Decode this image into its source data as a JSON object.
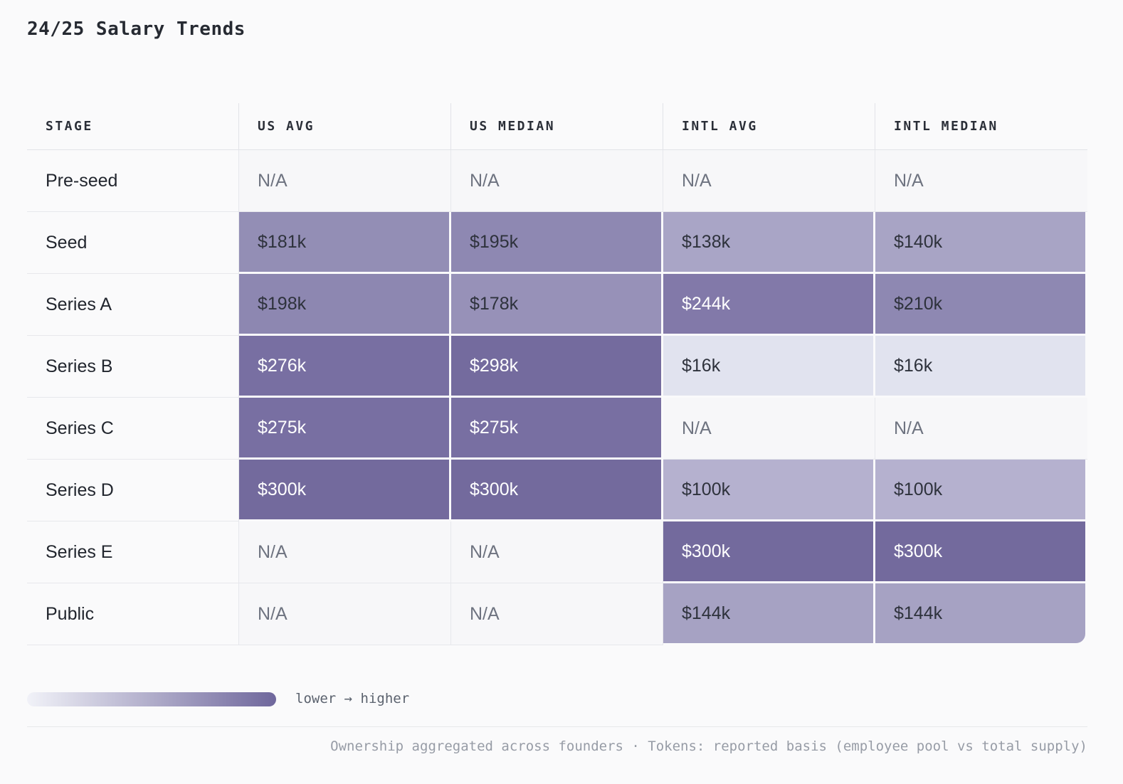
{
  "title": "24/25 Salary Trends",
  "table": {
    "columns": [
      "STAGE",
      "US AVG",
      "US MEDIAN",
      "INTL AVG",
      "INTL MEDIAN"
    ],
    "rows": [
      {
        "stage": "Pre-seed",
        "cells": [
          {
            "text": "N/A"
          },
          {
            "text": "N/A"
          },
          {
            "text": "N/A"
          },
          {
            "text": "N/A"
          }
        ]
      },
      {
        "stage": "Seed",
        "cells": [
          {
            "text": "$181k",
            "bg": "#938eb5"
          },
          {
            "text": "$195k",
            "bg": "#8e88b2"
          },
          {
            "text": "$138k",
            "bg": "#a9a5c6"
          },
          {
            "text": "$140k",
            "bg": "#a8a4c5"
          }
        ]
      },
      {
        "stage": "Series A",
        "cells": [
          {
            "text": "$198k",
            "bg": "#8d87b1"
          },
          {
            "text": "$178k",
            "bg": "#9791b8"
          },
          {
            "text": "$244k",
            "bg": "#8279a9",
            "fg": "light"
          },
          {
            "text": "$210k",
            "bg": "#8e88b2"
          }
        ]
      },
      {
        "stage": "Series B",
        "cells": [
          {
            "text": "$276k",
            "bg": "#786fa2",
            "fg": "light"
          },
          {
            "text": "$298k",
            "bg": "#746b9e",
            "fg": "light"
          },
          {
            "text": "$16k",
            "bg": "#e1e3ef"
          },
          {
            "text": "$16k",
            "bg": "#e1e3ef"
          }
        ]
      },
      {
        "stage": "Series C",
        "cells": [
          {
            "text": "$275k",
            "bg": "#786fa2",
            "fg": "light"
          },
          {
            "text": "$275k",
            "bg": "#786fa2",
            "fg": "light"
          },
          {
            "text": "N/A"
          },
          {
            "text": "N/A"
          }
        ]
      },
      {
        "stage": "Series D",
        "cells": [
          {
            "text": "$300k",
            "bg": "#736a9d",
            "fg": "light"
          },
          {
            "text": "$300k",
            "bg": "#736a9d",
            "fg": "light"
          },
          {
            "text": "$100k",
            "bg": "#b5b1cf"
          },
          {
            "text": "$100k",
            "bg": "#b5b1cf"
          }
        ]
      },
      {
        "stage": "Series E",
        "cells": [
          {
            "text": "N/A"
          },
          {
            "text": "N/A"
          },
          {
            "text": "$300k",
            "bg": "#736a9d",
            "fg": "light"
          },
          {
            "text": "$300k",
            "bg": "#736a9d",
            "fg": "light"
          }
        ]
      },
      {
        "stage": "Public",
        "cells": [
          {
            "text": "N/A"
          },
          {
            "text": "N/A"
          },
          {
            "text": "$144k",
            "bg": "#a6a2c3"
          },
          {
            "text": "$144k",
            "bg": "#a6a2c3",
            "corner": "br"
          }
        ]
      }
    ]
  },
  "legend": {
    "label": "lower → higher",
    "gradient_from": "#f1f2f8",
    "gradient_to": "#6f679c"
  },
  "footnote": "Ownership aggregated across founders · Tokens: reported basis (employee pool vs total supply)",
  "colors": {
    "page_bg": "#fafafb",
    "heat_min": "#e1e3ef",
    "heat_max": "#736a9d",
    "na_cell_bg": "#f7f7f9",
    "dark_text": "#2e323c",
    "light_text": "#ffffff"
  },
  "chart_data": {
    "type": "heatmap",
    "title": "24/25 Salary Trends",
    "rows": [
      "Pre-seed",
      "Seed",
      "Series A",
      "Series B",
      "Series C",
      "Series D",
      "Series E",
      "Public"
    ],
    "columns": [
      "US AVG",
      "US MEDIAN",
      "INTL AVG",
      "INTL MEDIAN"
    ],
    "values_usd_thousands": [
      [
        null,
        null,
        null,
        null
      ],
      [
        181,
        195,
        138,
        140
      ],
      [
        198,
        178,
        244,
        210
      ],
      [
        276,
        298,
        16,
        16
      ],
      [
        275,
        275,
        null,
        null
      ],
      [
        300,
        300,
        100,
        100
      ],
      [
        null,
        null,
        300,
        300
      ],
      [
        null,
        null,
        144,
        144
      ]
    ],
    "scale": {
      "min": 16,
      "max": 300,
      "legend": "lower → higher"
    }
  }
}
